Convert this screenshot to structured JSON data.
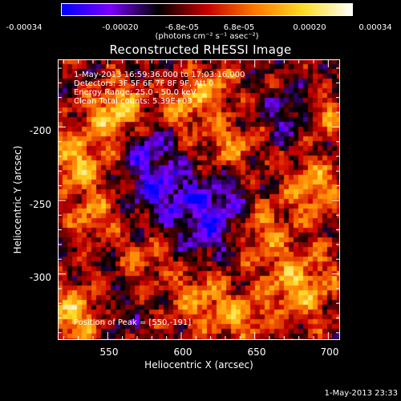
{
  "colorbar": {
    "ticks": [
      "-0.00034",
      "-0.00020",
      "-6.8e-05",
      "6.8e-05",
      "0.00020",
      "0.00034"
    ],
    "tick_values": [
      -0.00034,
      -0.0002,
      -6.8e-05,
      6.8e-05,
      0.0002,
      0.00034
    ],
    "range": [
      -0.00034,
      0.00034
    ],
    "units": "(photons cm⁻² s⁻¹ asec⁻²)"
  },
  "title": "Reconstructed RHESSI Image",
  "annotations": {
    "time": "1-May-2013 16:59:36.000 to 17:03:16.000",
    "detectors": "Detectors: 3F 5F 6F 7F 8F 9F, Att 0",
    "energy": "Energy Range: 25.0 - 50.0 keV",
    "clean": "Clean    Total counts: 5.39E+03",
    "peak": "Position of Peak = [550,-191]"
  },
  "footer_timestamp": "1-May-2013 23:33",
  "chart_data": {
    "type": "heatmap",
    "title": "Reconstructed RHESSI Image",
    "xlabel": "Heliocentric X (arcsec)",
    "ylabel": "Heliocentric Y (arcsec)",
    "xlim": [
      516,
      708
    ],
    "ylim": [
      -345,
      -154
    ],
    "x_ticks": [
      550,
      600,
      650,
      700
    ],
    "y_ticks": [
      -200,
      -250,
      -300
    ],
    "colormap": [
      "#0000ff",
      "#7b00ff",
      "#000000",
      "#c80000",
      "#ff7b00",
      "#ffdc28",
      "#ffffff"
    ],
    "grid": false
  }
}
